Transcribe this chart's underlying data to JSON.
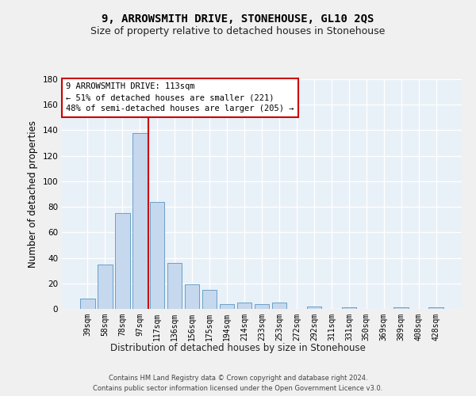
{
  "title": "9, ARROWSMITH DRIVE, STONEHOUSE, GL10 2QS",
  "subtitle": "Size of property relative to detached houses in Stonehouse",
  "xlabel": "Distribution of detached houses by size in Stonehouse",
  "ylabel": "Number of detached properties",
  "bar_color": "#c5d8ed",
  "bar_edge_color": "#6aa0c7",
  "background_color": "#e8f0f8",
  "grid_color": "#ffffff",
  "categories": [
    "39sqm",
    "58sqm",
    "78sqm",
    "97sqm",
    "117sqm",
    "136sqm",
    "156sqm",
    "175sqm",
    "194sqm",
    "214sqm",
    "233sqm",
    "253sqm",
    "272sqm",
    "292sqm",
    "311sqm",
    "331sqm",
    "350sqm",
    "369sqm",
    "389sqm",
    "408sqm",
    "428sqm"
  ],
  "values": [
    8,
    35,
    75,
    138,
    84,
    36,
    19,
    15,
    4,
    5,
    4,
    5,
    0,
    2,
    0,
    1,
    0,
    0,
    1,
    0,
    1
  ],
  "ylim": [
    0,
    180
  ],
  "yticks": [
    0,
    20,
    40,
    60,
    80,
    100,
    120,
    140,
    160,
    180
  ],
  "vline_color": "#cc0000",
  "annotation_text": "9 ARROWSMITH DRIVE: 113sqm\n← 51% of detached houses are smaller (221)\n48% of semi-detached houses are larger (205) →",
  "annotation_box_color": "#ffffff",
  "annotation_box_edge": "#cc0000",
  "footer": "Contains HM Land Registry data © Crown copyright and database right 2024.\nContains public sector information licensed under the Open Government Licence v3.0.",
  "title_fontsize": 10,
  "subtitle_fontsize": 9,
  "xlabel_fontsize": 8.5,
  "ylabel_fontsize": 8.5,
  "fig_bg": "#f0f0f0"
}
